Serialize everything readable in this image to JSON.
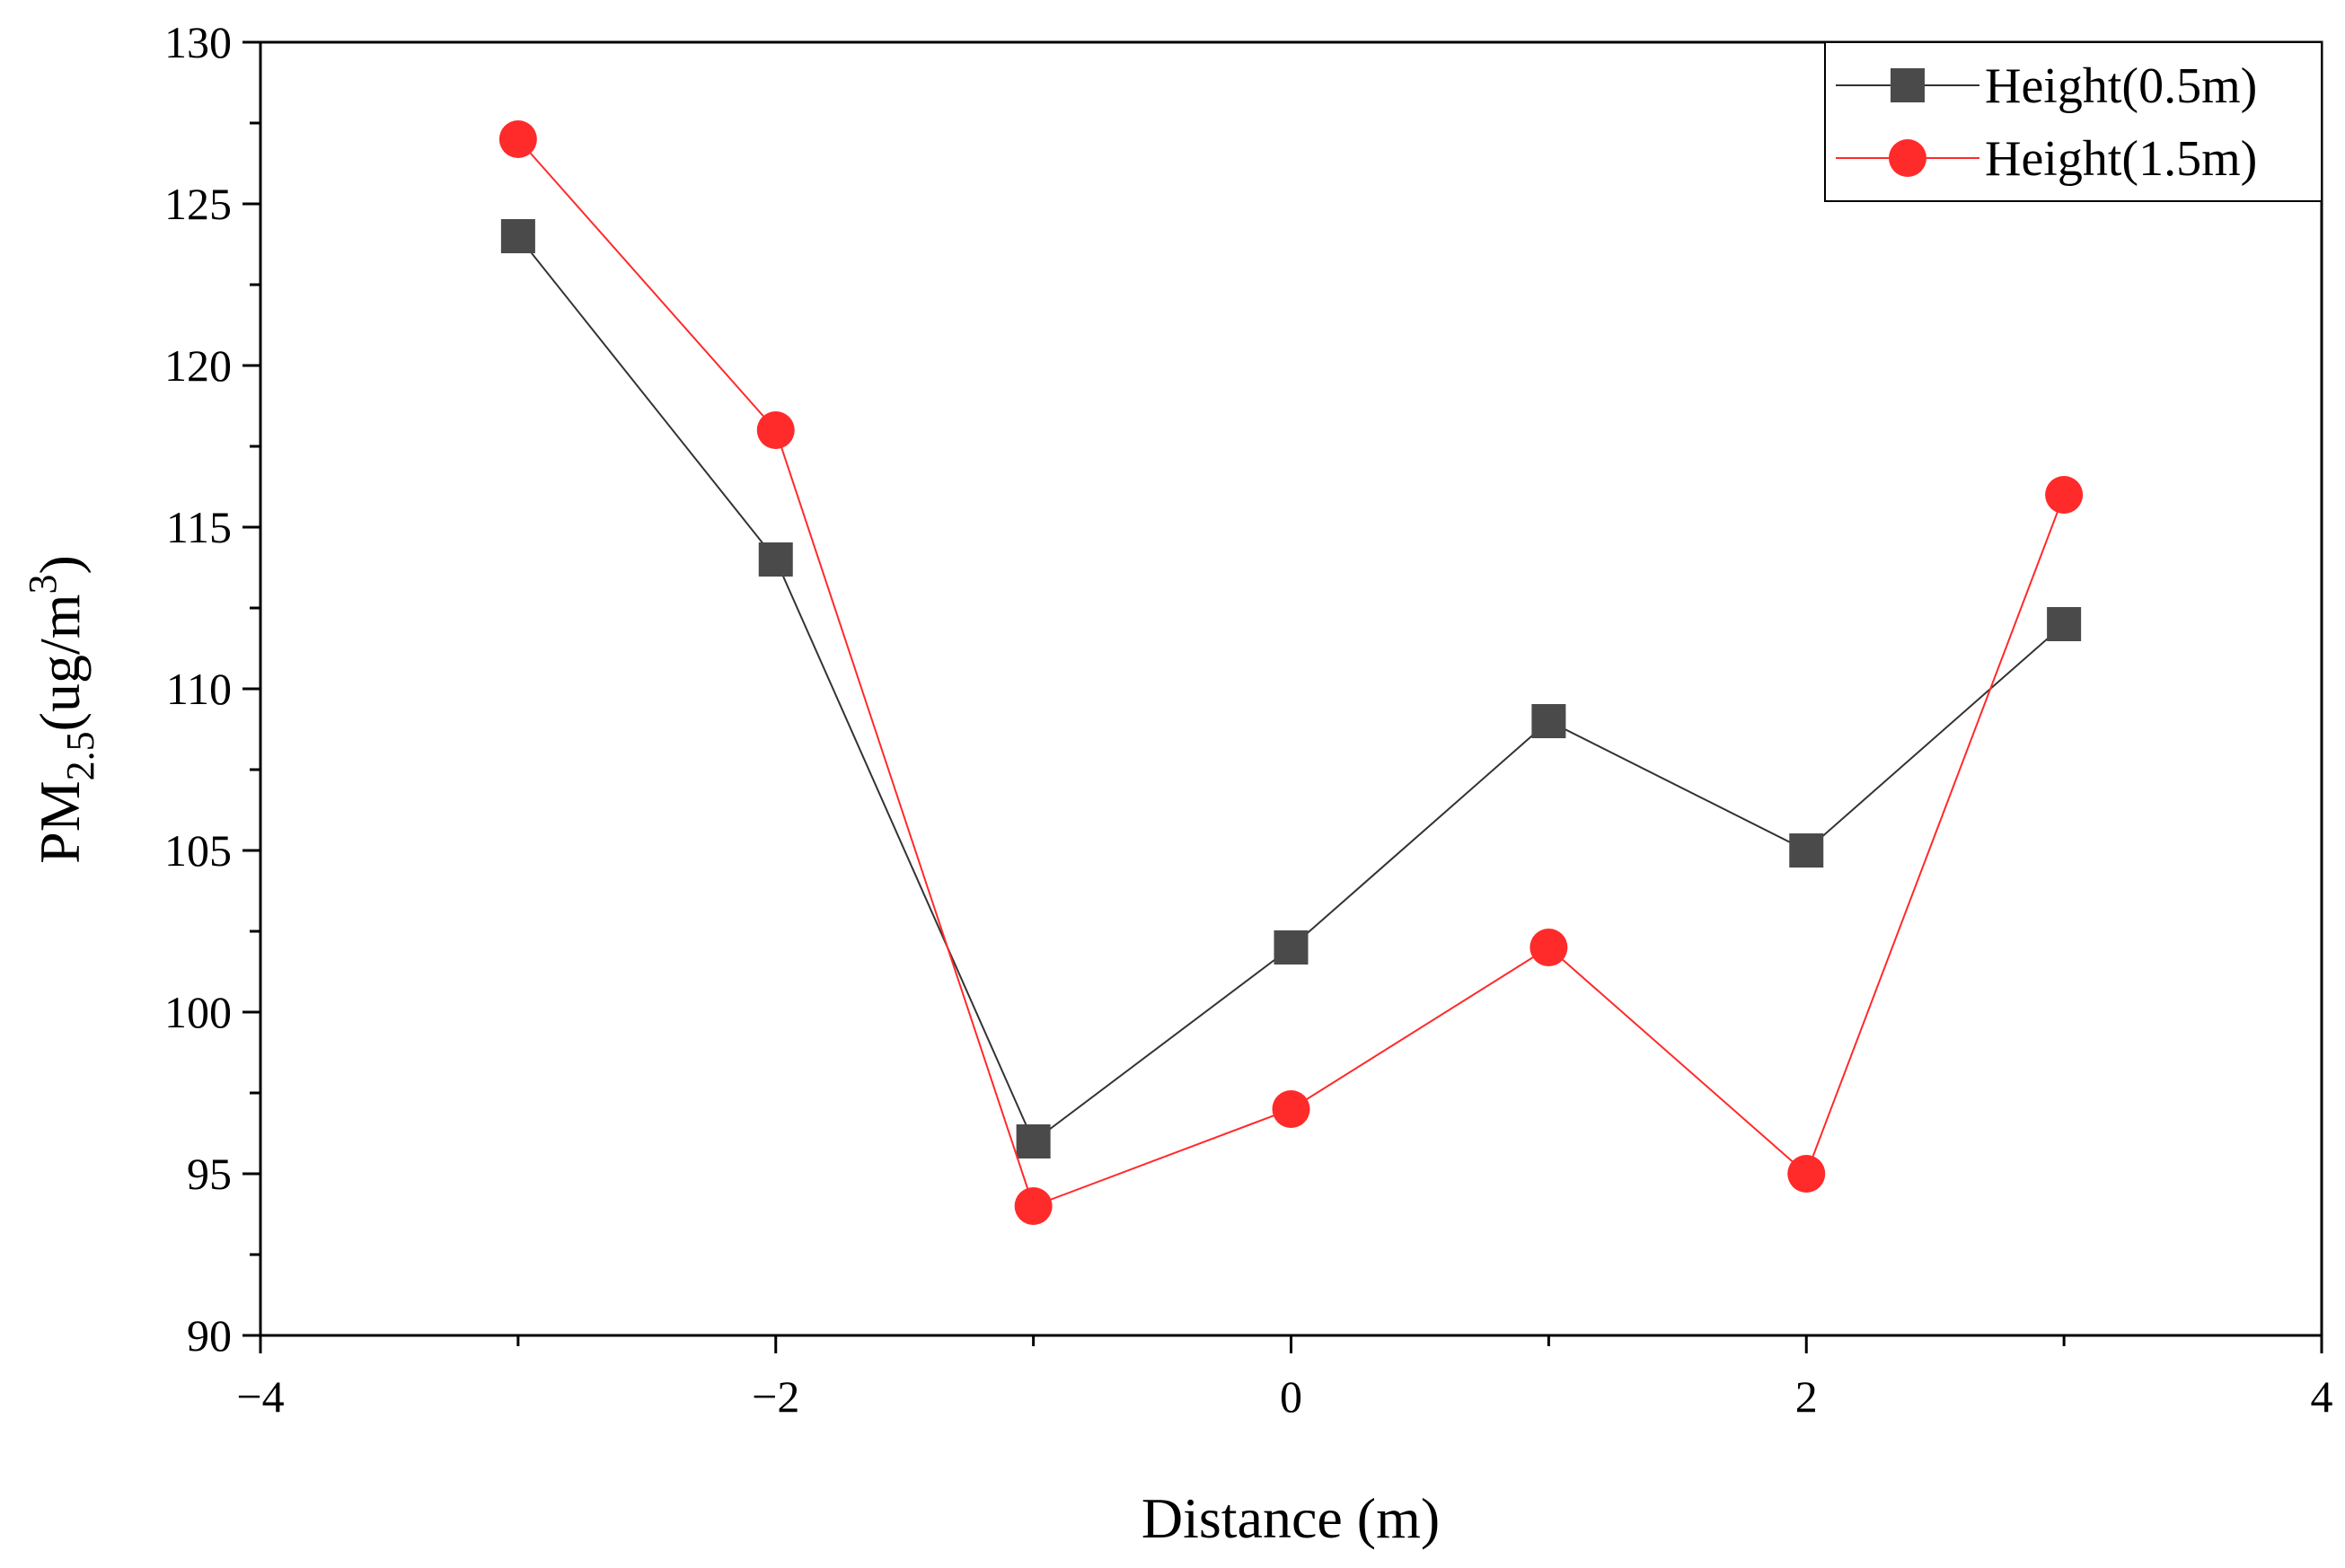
{
  "chart_data": {
    "type": "line",
    "title": "",
    "xlabel": "Distance (m)",
    "ylabel": {
      "prefix": "PM",
      "subscript": "2.5",
      "unit_base": "(ug/m",
      "unit_superscript": "3",
      "unit_close": ")"
    },
    "xlim": [
      -4,
      4
    ],
    "ylim": [
      90,
      130
    ],
    "x_ticks": [
      -4,
      -2,
      0,
      2,
      4
    ],
    "x_tick_labels": [
      "−4",
      "−2",
      "0",
      "2",
      "4"
    ],
    "y_ticks": [
      90,
      95,
      100,
      105,
      110,
      115,
      120,
      125,
      130
    ],
    "y_tick_labels": [
      "90",
      "95",
      "100",
      "105",
      "110",
      "115",
      "120",
      "125",
      "130"
    ],
    "x_minor_step": 1,
    "y_minor_step": 2.5,
    "grid": false,
    "legend_position": "top-right",
    "x": [
      -3,
      -2,
      -1,
      0,
      1,
      2,
      3
    ],
    "series": [
      {
        "name": "Height(0.5m)",
        "marker": "square",
        "color": "#4a4a4a",
        "line_color": "#333333",
        "values": [
          124,
          114,
          96,
          102,
          109,
          105,
          112
        ]
      },
      {
        "name": "Height(1.5m)",
        "marker": "circle",
        "color": "#ff2a2a",
        "line_color": "#ff2a2a",
        "values": [
          127,
          118,
          94,
          97,
          102,
          95,
          116
        ]
      }
    ]
  }
}
